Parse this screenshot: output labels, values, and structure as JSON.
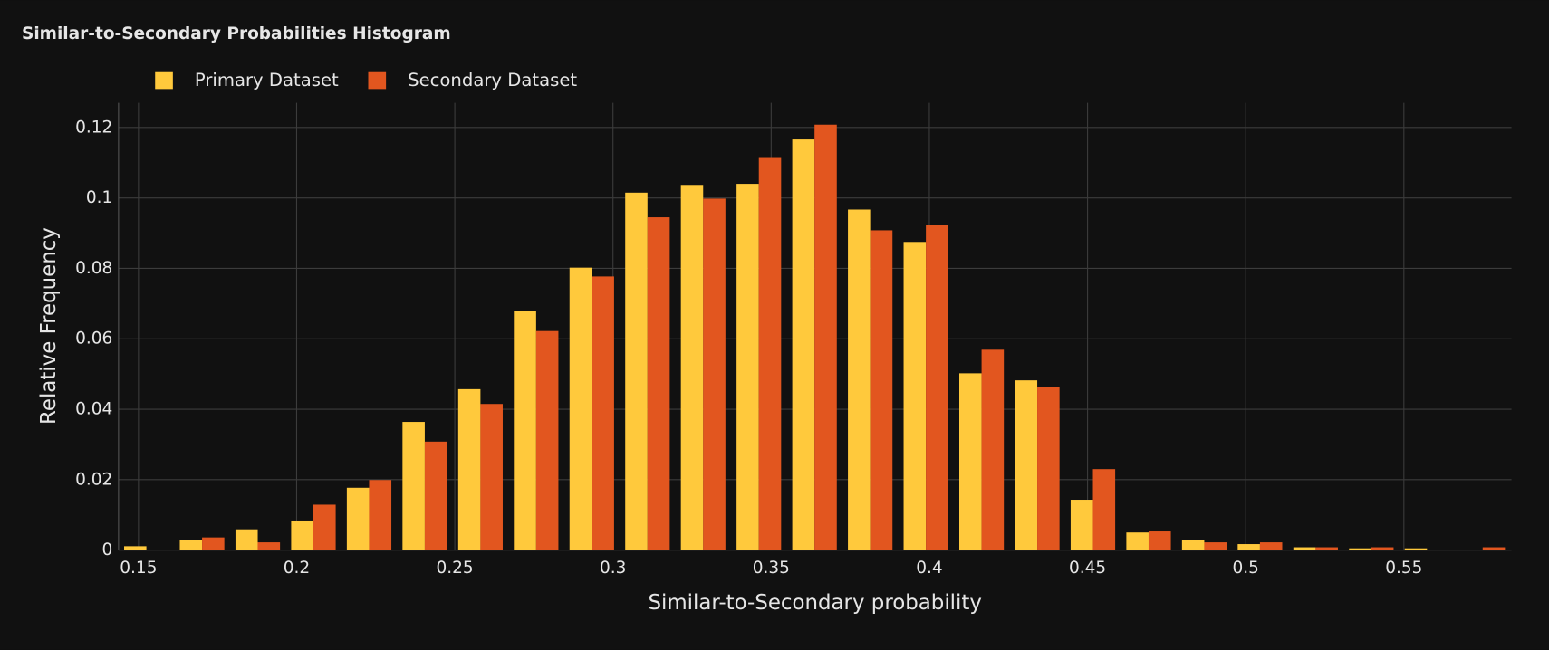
{
  "chart_data": {
    "type": "histogram",
    "title": "Similar-to-Secondary Probabilities Histogram",
    "x_label": "Similar-to-Secondary probability",
    "y_label": "Relative Frequency",
    "bins": [
      0.1437,
      0.1613,
      0.1789,
      0.1965,
      0.2141,
      0.2317,
      0.2493,
      0.2669,
      0.2845,
      0.3021,
      0.3197,
      0.3373,
      0.3549,
      0.3725,
      0.3901,
      0.4077,
      0.4253,
      0.4429,
      0.4605,
      0.4781,
      0.4957,
      0.5133,
      0.5309,
      0.5485,
      0.5661,
      0.5837
    ],
    "series": [
      {
        "name": "Primary Dataset",
        "color": "#ffc93c",
        "values": [
          0.0011,
          0.0028,
          0.0059,
          0.0084,
          0.0177,
          0.0364,
          0.0457,
          0.0678,
          0.0802,
          0.1015,
          0.1037,
          0.104,
          0.1166,
          0.0967,
          0.0875,
          0.0502,
          0.0482,
          0.0143,
          0.005,
          0.0028,
          0.0017,
          0.0008,
          0.0005,
          0.0005,
          0
        ]
      },
      {
        "name": "Secondary Dataset",
        "color": "#e2561f",
        "values": [
          0,
          0.0036,
          0.0022,
          0.0129,
          0.0199,
          0.0308,
          0.0415,
          0.0622,
          0.0777,
          0.0945,
          0.0998,
          0.1116,
          0.1208,
          0.0908,
          0.0922,
          0.0569,
          0.0463,
          0.023,
          0.0053,
          0.0022,
          0.0022,
          0.0008,
          0.0008,
          0,
          0.0008
        ]
      }
    ],
    "xlim": [
      0.1437,
      0.584
    ],
    "ylim": [
      0,
      0.127
    ],
    "xticks": [
      0.15,
      0.2,
      0.25,
      0.3,
      0.35,
      0.4,
      0.45,
      0.5,
      0.55
    ],
    "yticks": [
      0,
      0.02,
      0.04,
      0.06,
      0.08,
      0.1,
      0.12
    ],
    "grid": true,
    "legend": "top-left"
  }
}
